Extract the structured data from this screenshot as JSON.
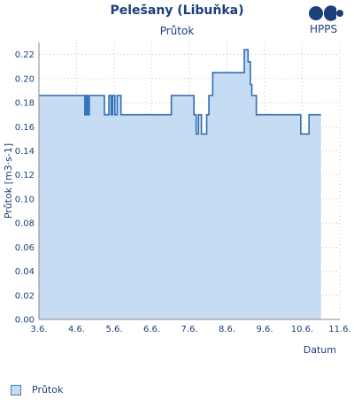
{
  "header": {
    "title": "Pelešany (Libuňka)",
    "subtitle": "Průtok",
    "logo_text": "HPPS"
  },
  "legend": {
    "label": "Průtok"
  },
  "colors": {
    "text": "#1c3f7a",
    "line": "#2f6db5",
    "fill": "#c6dcf2",
    "grid": "#aaaaaa"
  },
  "chart_data": {
    "type": "area",
    "title": "Pelešany (Libuňka)",
    "subtitle": "Průtok",
    "xlabel": "Datum",
    "ylabel": "Průtok [m3·s-1]",
    "x_ticks": [
      "3.6.",
      "4.6.",
      "5.6.",
      "6.6.",
      "7.6.",
      "8.6.",
      "9.6.",
      "10.6.",
      "11.6."
    ],
    "xlim": [
      0,
      8
    ],
    "ylim": [
      0,
      0.23
    ],
    "y_ticks": [
      0.0,
      0.02,
      0.04,
      0.06,
      0.08,
      0.1,
      0.12,
      0.14,
      0.16,
      0.18,
      0.2,
      0.22
    ],
    "grid": true,
    "legend_position": "bottom-left",
    "series": [
      {
        "name": "Průtok",
        "x": [
          0.0,
          1.22,
          1.22,
          1.26,
          1.26,
          1.3,
          1.3,
          1.34,
          1.34,
          1.4,
          1.4,
          1.44,
          1.44,
          1.74,
          1.74,
          1.86,
          1.86,
          1.92,
          1.92,
          1.96,
          1.96,
          2.02,
          2.02,
          2.08,
          2.08,
          2.18,
          2.18,
          2.22,
          2.22,
          2.3,
          2.3,
          3.52,
          3.52,
          4.12,
          4.12,
          4.18,
          4.18,
          4.24,
          4.24,
          4.32,
          4.32,
          4.46,
          4.46,
          4.52,
          4.52,
          4.62,
          4.62,
          4.8,
          4.8,
          5.46,
          5.46,
          5.56,
          5.56,
          5.62,
          5.62,
          5.66,
          5.66,
          5.72,
          5.72,
          5.78,
          5.78,
          5.88,
          5.88,
          6.96,
          6.96,
          7.18,
          7.18,
          7.5
        ],
        "values": [
          0.186,
          0.186,
          0.17,
          0.17,
          0.186,
          0.186,
          0.17,
          0.17,
          0.186,
          0.186,
          0.186,
          0.186,
          0.186,
          0.186,
          0.17,
          0.17,
          0.186,
          0.186,
          0.17,
          0.17,
          0.186,
          0.186,
          0.17,
          0.17,
          0.186,
          0.186,
          0.17,
          0.17,
          0.17,
          0.17,
          0.17,
          0.17,
          0.186,
          0.186,
          0.17,
          0.17,
          0.154,
          0.154,
          0.17,
          0.17,
          0.154,
          0.154,
          0.17,
          0.17,
          0.186,
          0.186,
          0.205,
          0.205,
          0.205,
          0.205,
          0.224,
          0.224,
          0.214,
          0.214,
          0.195,
          0.195,
          0.186,
          0.186,
          0.186,
          0.186,
          0.17,
          0.17,
          0.17,
          0.17,
          0.154,
          0.154,
          0.17,
          0.17
        ]
      }
    ]
  }
}
